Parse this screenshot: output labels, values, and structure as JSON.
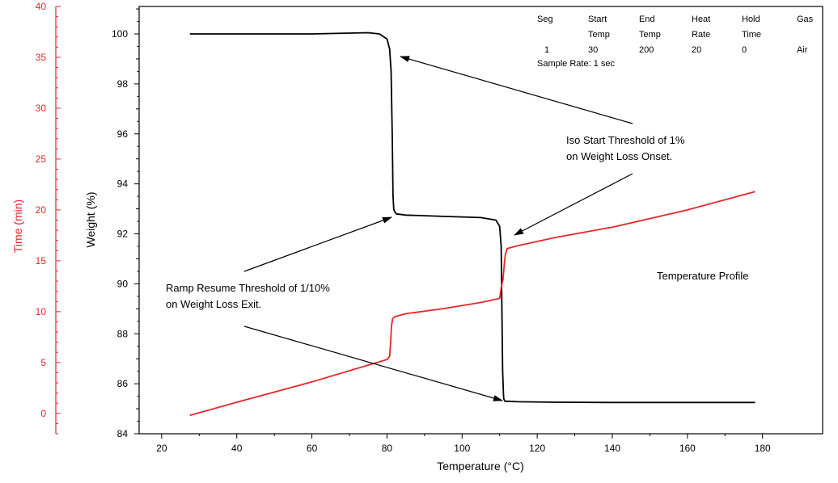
{
  "chart_data": {
    "type": "line",
    "xlabel": "Temperature (°C)",
    "ylabel": "Weight (%)",
    "y2label": "Time (min)",
    "xlim": [
      14,
      196
    ],
    "ylim": [
      84,
      101.1
    ],
    "y2lim": [
      -2,
      40
    ],
    "x_ticks": [
      20,
      40,
      60,
      80,
      100,
      120,
      140,
      160,
      180
    ],
    "y_ticks": [
      84,
      86,
      88,
      90,
      92,
      94,
      96,
      98,
      100
    ],
    "y2_ticks": [
      0,
      5,
      10,
      15,
      20,
      25,
      30,
      35,
      40
    ],
    "colors": {
      "weight": "#000000",
      "time": "#e8262a",
      "time_axis": "#e8262a"
    },
    "series": [
      {
        "axis": "left",
        "x": [
          27.5,
          40,
          60,
          75,
          78,
          80,
          80.7,
          81.1,
          81.4,
          81.6,
          81.8,
          82,
          82.5,
          85,
          95,
          105,
          109,
          110,
          110.4,
          110.6,
          110.8,
          111,
          111.1,
          111.4,
          112,
          115,
          125,
          140,
          160,
          178
        ],
        "y": [
          100,
          100,
          100,
          100.05,
          100,
          99.8,
          99.4,
          98.5,
          96,
          93.5,
          93,
          92.9,
          92.8,
          92.75,
          92.7,
          92.65,
          92.55,
          92.3,
          91.5,
          89,
          86.5,
          85.6,
          85.4,
          85.3,
          85.3,
          85.28,
          85.26,
          85.25,
          85.25,
          85.25
        ]
      },
      {
        "name": "Temperature Profile",
        "axis": "right",
        "x": [
          27.5,
          40,
          60,
          80,
          80.7,
          81,
          81.2,
          81.5,
          82,
          85,
          95,
          105,
          110,
          110.5,
          110.9,
          111.2,
          111.5,
          112,
          115,
          125,
          140,
          160,
          178
        ],
        "y": [
          -0.2,
          1.1,
          3.1,
          5.3,
          5.6,
          7.2,
          8.6,
          9.3,
          9.5,
          9.8,
          10.3,
          10.9,
          11.3,
          12.5,
          13.2,
          14.5,
          15.6,
          16.2,
          16.5,
          17.3,
          18.3,
          20.0,
          21.8
        ]
      }
    ],
    "annotations": [
      {
        "lines": [
          "Iso Start Threshold of 1%",
          "on Weight Loss Onset."
        ]
      },
      {
        "lines": [
          "Ramp Resume Threshold of 1/10%",
          "on Weight Loss Exit."
        ]
      }
    ],
    "method_table": {
      "header1": [
        "Seg",
        "Start",
        "End",
        "Heat",
        "Hold",
        "Gas"
      ],
      "header2": [
        "",
        "Temp",
        "Temp",
        "Rate",
        "Time",
        ""
      ],
      "row": [
        "1",
        "30",
        "200",
        "20",
        "0",
        "Air"
      ],
      "note": "Sample Rate: 1 sec"
    }
  }
}
